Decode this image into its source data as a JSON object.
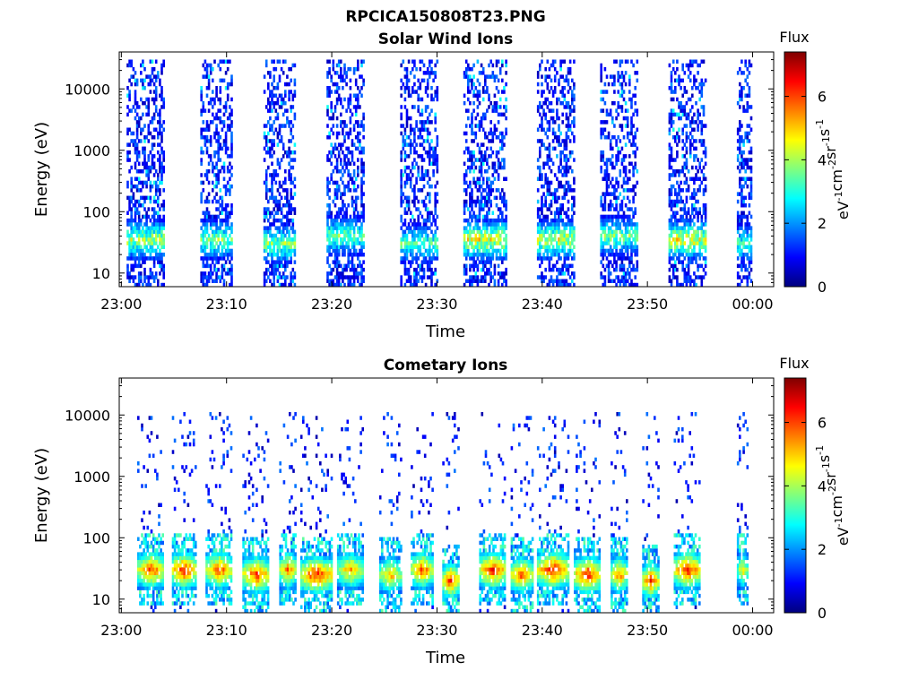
{
  "figure": {
    "title": "RPCICA150808T23.PNG"
  },
  "colorbar": {
    "label": "Flux",
    "units_prefix": "eV",
    "units_parts": [
      {
        "base": "eV",
        "sup": "-1"
      },
      {
        "base": "cm",
        "sup": "-2"
      },
      {
        "base": "sr",
        "sup": "-1"
      },
      {
        "base": "s",
        "sup": "-1"
      }
    ],
    "range": [
      0,
      7.4
    ],
    "ticks": [
      0,
      2,
      4,
      6
    ],
    "tick_labels": [
      "0",
      "2",
      "4",
      "6"
    ],
    "colormap": "jet",
    "colors": [
      "#00007f",
      "#0000ff",
      "#007fff",
      "#00ffff",
      "#7fff7f",
      "#ffff00",
      "#ff7f00",
      "#ff0000",
      "#7f0000"
    ]
  },
  "chart_data": [
    {
      "type": "heatmap",
      "title": "Solar Wind Ions",
      "xlabel": "Time",
      "ylabel": "Energy (eV)",
      "x_tick_labels": [
        "23:00",
        "23:10",
        "23:20",
        "23:30",
        "23:40",
        "23:50",
        "00:00"
      ],
      "x_ticks_minutes": [
        0,
        10,
        20,
        30,
        40,
        50,
        60
      ],
      "xlim_minutes": [
        -0.2,
        62
      ],
      "y_scale": "log",
      "y_tick_labels": [
        "10",
        "100",
        "1000",
        "10000"
      ],
      "y_ticks": [
        10,
        100,
        1000,
        10000
      ],
      "ylim": [
        6,
        40000
      ],
      "bursts": [
        {
          "start_min": 0.5,
          "end_min": 4.0,
          "peak_energy_ev": 35,
          "peak_flux": 5.0
        },
        {
          "start_min": 7.5,
          "end_min": 10.5,
          "peak_energy_ev": 35,
          "peak_flux": 4.5
        },
        {
          "start_min": 13.5,
          "end_min": 16.5,
          "peak_energy_ev": 30,
          "peak_flux": 4.6
        },
        {
          "start_min": 19.5,
          "end_min": 23.0,
          "peak_energy_ev": 40,
          "peak_flux": 4.4
        },
        {
          "start_min": 26.5,
          "end_min": 30.0,
          "peak_energy_ev": 30,
          "peak_flux": 4.2
        },
        {
          "start_min": 32.5,
          "end_min": 36.5,
          "peak_energy_ev": 35,
          "peak_flux": 5.6
        },
        {
          "start_min": 39.5,
          "end_min": 43.0,
          "peak_energy_ev": 35,
          "peak_flux": 5.4
        },
        {
          "start_min": 45.5,
          "end_min": 49.0,
          "peak_energy_ev": 40,
          "peak_flux": 4.4
        },
        {
          "start_min": 52.0,
          "end_min": 55.5,
          "peak_energy_ev": 35,
          "peak_flux": 5.6
        },
        {
          "start_min": 58.5,
          "end_min": 59.8,
          "peak_energy_ev": 30,
          "peak_flux": 4.0
        }
      ]
    },
    {
      "type": "heatmap",
      "title": "Cometary Ions",
      "xlabel": "Time",
      "ylabel": "Energy (eV)",
      "x_tick_labels": [
        "23:00",
        "23:10",
        "23:20",
        "23:30",
        "23:40",
        "23:50",
        "00:00"
      ],
      "x_ticks_minutes": [
        0,
        10,
        20,
        30,
        40,
        50,
        60
      ],
      "xlim_minutes": [
        -0.2,
        62
      ],
      "y_scale": "log",
      "y_tick_labels": [
        "10",
        "100",
        "1000",
        "10000"
      ],
      "y_ticks": [
        10,
        100,
        1000,
        10000
      ],
      "ylim": [
        6,
        40000
      ],
      "bursts": [
        {
          "start_min": 1.5,
          "end_min": 4.0,
          "peak_energy_ev": 30,
          "peak_flux": 6.8
        },
        {
          "start_min": 4.8,
          "end_min": 7.0,
          "peak_energy_ev": 30,
          "peak_flux": 7.2
        },
        {
          "start_min": 8.0,
          "end_min": 10.5,
          "peak_energy_ev": 30,
          "peak_flux": 6.8
        },
        {
          "start_min": 11.5,
          "end_min": 14.0,
          "peak_energy_ev": 25,
          "peak_flux": 7.0
        },
        {
          "start_min": 15.0,
          "end_min": 16.5,
          "peak_energy_ev": 30,
          "peak_flux": 6.5
        },
        {
          "start_min": 17.0,
          "end_min": 20.0,
          "peak_energy_ev": 25,
          "peak_flux": 7.3
        },
        {
          "start_min": 20.5,
          "end_min": 23.0,
          "peak_energy_ev": 30,
          "peak_flux": 6.0
        },
        {
          "start_min": 24.5,
          "end_min": 26.5,
          "peak_energy_ev": 25,
          "peak_flux": 6.0
        },
        {
          "start_min": 27.5,
          "end_min": 29.5,
          "peak_energy_ev": 30,
          "peak_flux": 6.8
        },
        {
          "start_min": 30.5,
          "end_min": 32.0,
          "peak_energy_ev": 20,
          "peak_flux": 7.0
        },
        {
          "start_min": 34.0,
          "end_min": 36.5,
          "peak_energy_ev": 30,
          "peak_flux": 7.0
        },
        {
          "start_min": 37.0,
          "end_min": 39.0,
          "peak_energy_ev": 25,
          "peak_flux": 6.8
        },
        {
          "start_min": 39.5,
          "end_min": 42.5,
          "peak_energy_ev": 30,
          "peak_flux": 7.2
        },
        {
          "start_min": 43.0,
          "end_min": 45.5,
          "peak_energy_ev": 25,
          "peak_flux": 7.3
        },
        {
          "start_min": 46.5,
          "end_min": 48.0,
          "peak_energy_ev": 25,
          "peak_flux": 6.5
        },
        {
          "start_min": 49.5,
          "end_min": 51.0,
          "peak_energy_ev": 20,
          "peak_flux": 6.8
        },
        {
          "start_min": 52.5,
          "end_min": 55.0,
          "peak_energy_ev": 30,
          "peak_flux": 7.2
        },
        {
          "start_min": 58.5,
          "end_min": 59.5,
          "peak_energy_ev": 30,
          "peak_flux": 5.5
        }
      ]
    }
  ]
}
